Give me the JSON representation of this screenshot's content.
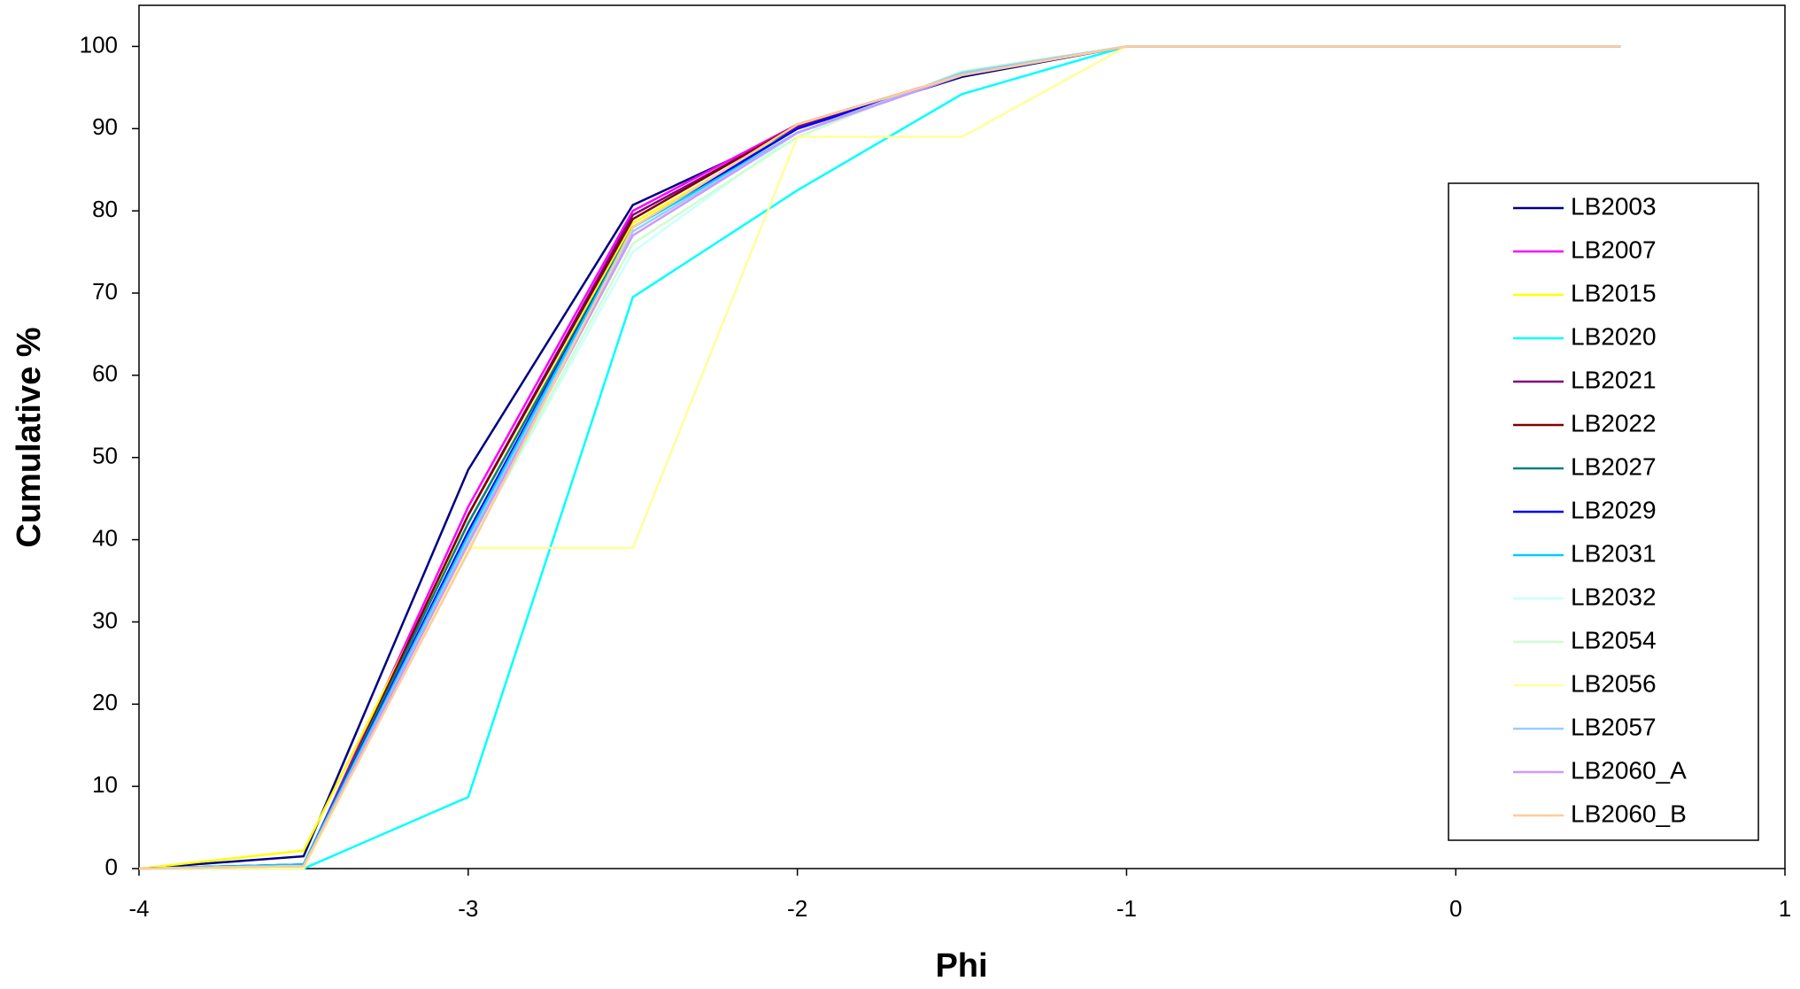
{
  "chart_data": {
    "type": "line",
    "x_label": "Phi",
    "y_label": "Cumulative %",
    "x": [
      -4,
      -3.5,
      -3,
      -2.5,
      -2,
      -1.5,
      -1,
      -0.5,
      0,
      0.5
    ],
    "xlim": [
      -4,
      1
    ],
    "xticks": [
      -4,
      -3,
      -2,
      -1,
      0,
      1
    ],
    "ylim": [
      0,
      105
    ],
    "yticks": [
      0,
      10,
      20,
      30,
      40,
      50,
      60,
      70,
      80,
      90,
      100
    ],
    "legend_position": "right",
    "series": [
      {
        "name": "LB2003",
        "color": "#000080",
        "values": [
          0,
          1.5,
          48.5,
          80.7,
          90,
          96.3,
          100,
          100,
          100,
          100
        ]
      },
      {
        "name": "LB2007",
        "color": "#ff00ff",
        "values": [
          0,
          0.3,
          44,
          80,
          90.5,
          96.5,
          100,
          100,
          100,
          100
        ]
      },
      {
        "name": "LB2015",
        "color": "#ffff00",
        "values": [
          0,
          2.2,
          42,
          78.5,
          90,
          96.5,
          100,
          100,
          100,
          100
        ]
      },
      {
        "name": "LB2020",
        "color": "#00ffff",
        "values": [
          0,
          0,
          8.7,
          69.5,
          82.5,
          94.2,
          100,
          100,
          100,
          100
        ]
      },
      {
        "name": "LB2021",
        "color": "#800080",
        "values": [
          0,
          0.3,
          43,
          79.5,
          90.3,
          96.5,
          100,
          100,
          100,
          100
        ]
      },
      {
        "name": "LB2022",
        "color": "#800000",
        "values": [
          0,
          0.3,
          43,
          79,
          90.5,
          96.5,
          100,
          100,
          100,
          100
        ]
      },
      {
        "name": "LB2027",
        "color": "#008080",
        "values": [
          0,
          0.5,
          42,
          78,
          90,
          96.5,
          100,
          100,
          100,
          100
        ]
      },
      {
        "name": "LB2029",
        "color": "#0000ff",
        "values": [
          0,
          0.5,
          41,
          78,
          90,
          96.5,
          100,
          100,
          100,
          100
        ]
      },
      {
        "name": "LB2031",
        "color": "#00ccff",
        "values": [
          0,
          0.5,
          40.5,
          78,
          89.5,
          96.5,
          100,
          100,
          100,
          100
        ]
      },
      {
        "name": "LB2032",
        "color": "#ccffff",
        "values": [
          0,
          0.3,
          39,
          75,
          89.5,
          96.8,
          100,
          100,
          100,
          100
        ]
      },
      {
        "name": "LB2054",
        "color": "#ccffcc",
        "values": [
          0,
          0.3,
          39,
          76,
          89,
          97,
          100,
          100,
          100,
          100
        ]
      },
      {
        "name": "LB2056",
        "color": "#ffff99",
        "values": [
          0,
          0,
          39,
          39,
          89,
          89,
          100,
          100,
          100,
          100
        ]
      },
      {
        "name": "LB2057",
        "color": "#99ccff",
        "values": [
          0,
          0.3,
          40,
          77.5,
          89.5,
          96.8,
          100,
          100,
          100,
          100
        ]
      },
      {
        "name": "LB2060_A",
        "color": "#cc99ff",
        "values": [
          0,
          0.3,
          39.5,
          77,
          89.5,
          96.5,
          100,
          100,
          100,
          100
        ]
      },
      {
        "name": "LB2060_B",
        "color": "#ffcc99",
        "values": [
          0,
          0.3,
          38.5,
          78,
          90.5,
          96.5,
          100,
          100,
          100,
          100
        ]
      }
    ]
  }
}
